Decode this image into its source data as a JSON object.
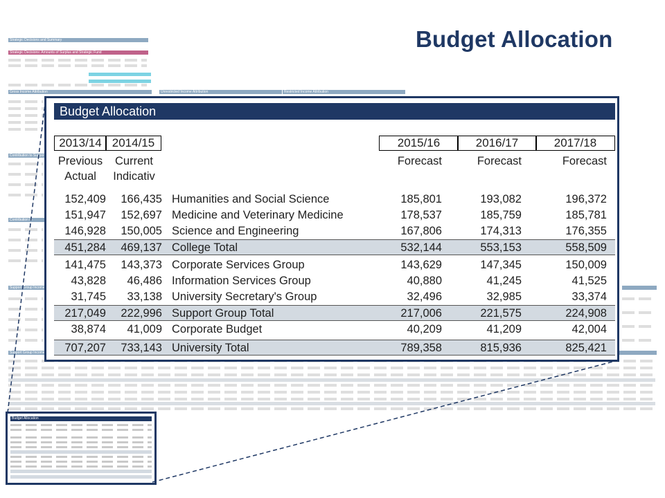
{
  "slide": {
    "title": "Budget Allocation"
  },
  "background_sheet": {
    "sections": [
      "Strategic Decisions and Summary",
      "Strategic Decisions: Amounts of Surplus and Strategic Fund",
      "Gross Income Attribution",
      "Unrestricted Income Attribution",
      "Restricted Income Attribution",
      "Contribution to Support Groups",
      "Contribution to University Overheads",
      "Support Group Income",
      "Support Group Income"
    ],
    "mini_title": "Budget Allocation"
  },
  "panel": {
    "title": "Budget Allocation",
    "years": {
      "prev": "2013/14",
      "curr": "2014/15",
      "f1": "2015/16",
      "f2": "2016/17",
      "f3": "2017/18"
    },
    "subheads": {
      "prev_line1": "Previous",
      "prev_line2": "Actual",
      "curr_line1": "Current",
      "curr_line2": "Indicativ",
      "f1": "Forecast",
      "f2": "Forecast",
      "f3": "Forecast"
    },
    "rows": [
      {
        "prev": "152,409",
        "curr": "166,435",
        "name": "Humanities and Social Science",
        "f1": "185,801",
        "f2": "193,082",
        "f3": "196,372"
      },
      {
        "prev": "151,947",
        "curr": "152,697",
        "name": "Medicine and Veterinary Medicine",
        "f1": "178,537",
        "f2": "185,759",
        "f3": "185,781"
      },
      {
        "prev": "146,928",
        "curr": "150,005",
        "name": "Science and Engineering",
        "f1": "167,806",
        "f2": "174,313",
        "f3": "176,355"
      },
      {
        "prev": "451,284",
        "curr": "469,137",
        "name": "College Total",
        "f1": "532,144",
        "f2": "553,153",
        "f3": "558,509"
      },
      {
        "prev": "141,475",
        "curr": "143,373",
        "name": "Corporate Services Group",
        "f1": "143,629",
        "f2": "147,345",
        "f3": "150,009"
      },
      {
        "prev": "43,828",
        "curr": "46,486",
        "name": "Information Services Group",
        "f1": "40,880",
        "f2": "41,245",
        "f3": "41,525"
      },
      {
        "prev": "31,745",
        "curr": "33,138",
        "name": "University Secretary's Group",
        "f1": "32,496",
        "f2": "32,985",
        "f3": "33,374"
      },
      {
        "prev": "217,049",
        "curr": "222,996",
        "name": "Support Group Total",
        "f1": "217,006",
        "f2": "221,575",
        "f3": "224,908"
      },
      {
        "prev": "38,874",
        "curr": "41,009",
        "name": "Corporate Budget",
        "f1": "40,209",
        "f2": "41,209",
        "f3": "42,004"
      },
      {
        "prev": "707,207",
        "curr": "733,143",
        "name": "University Total",
        "f1": "789,358",
        "f2": "815,936",
        "f3": "825,421"
      }
    ]
  },
  "colors": {
    "navy": "#1f3864",
    "shade": "#d3dae1",
    "pink": "#c0628a",
    "steel": "#8ea9c1"
  }
}
